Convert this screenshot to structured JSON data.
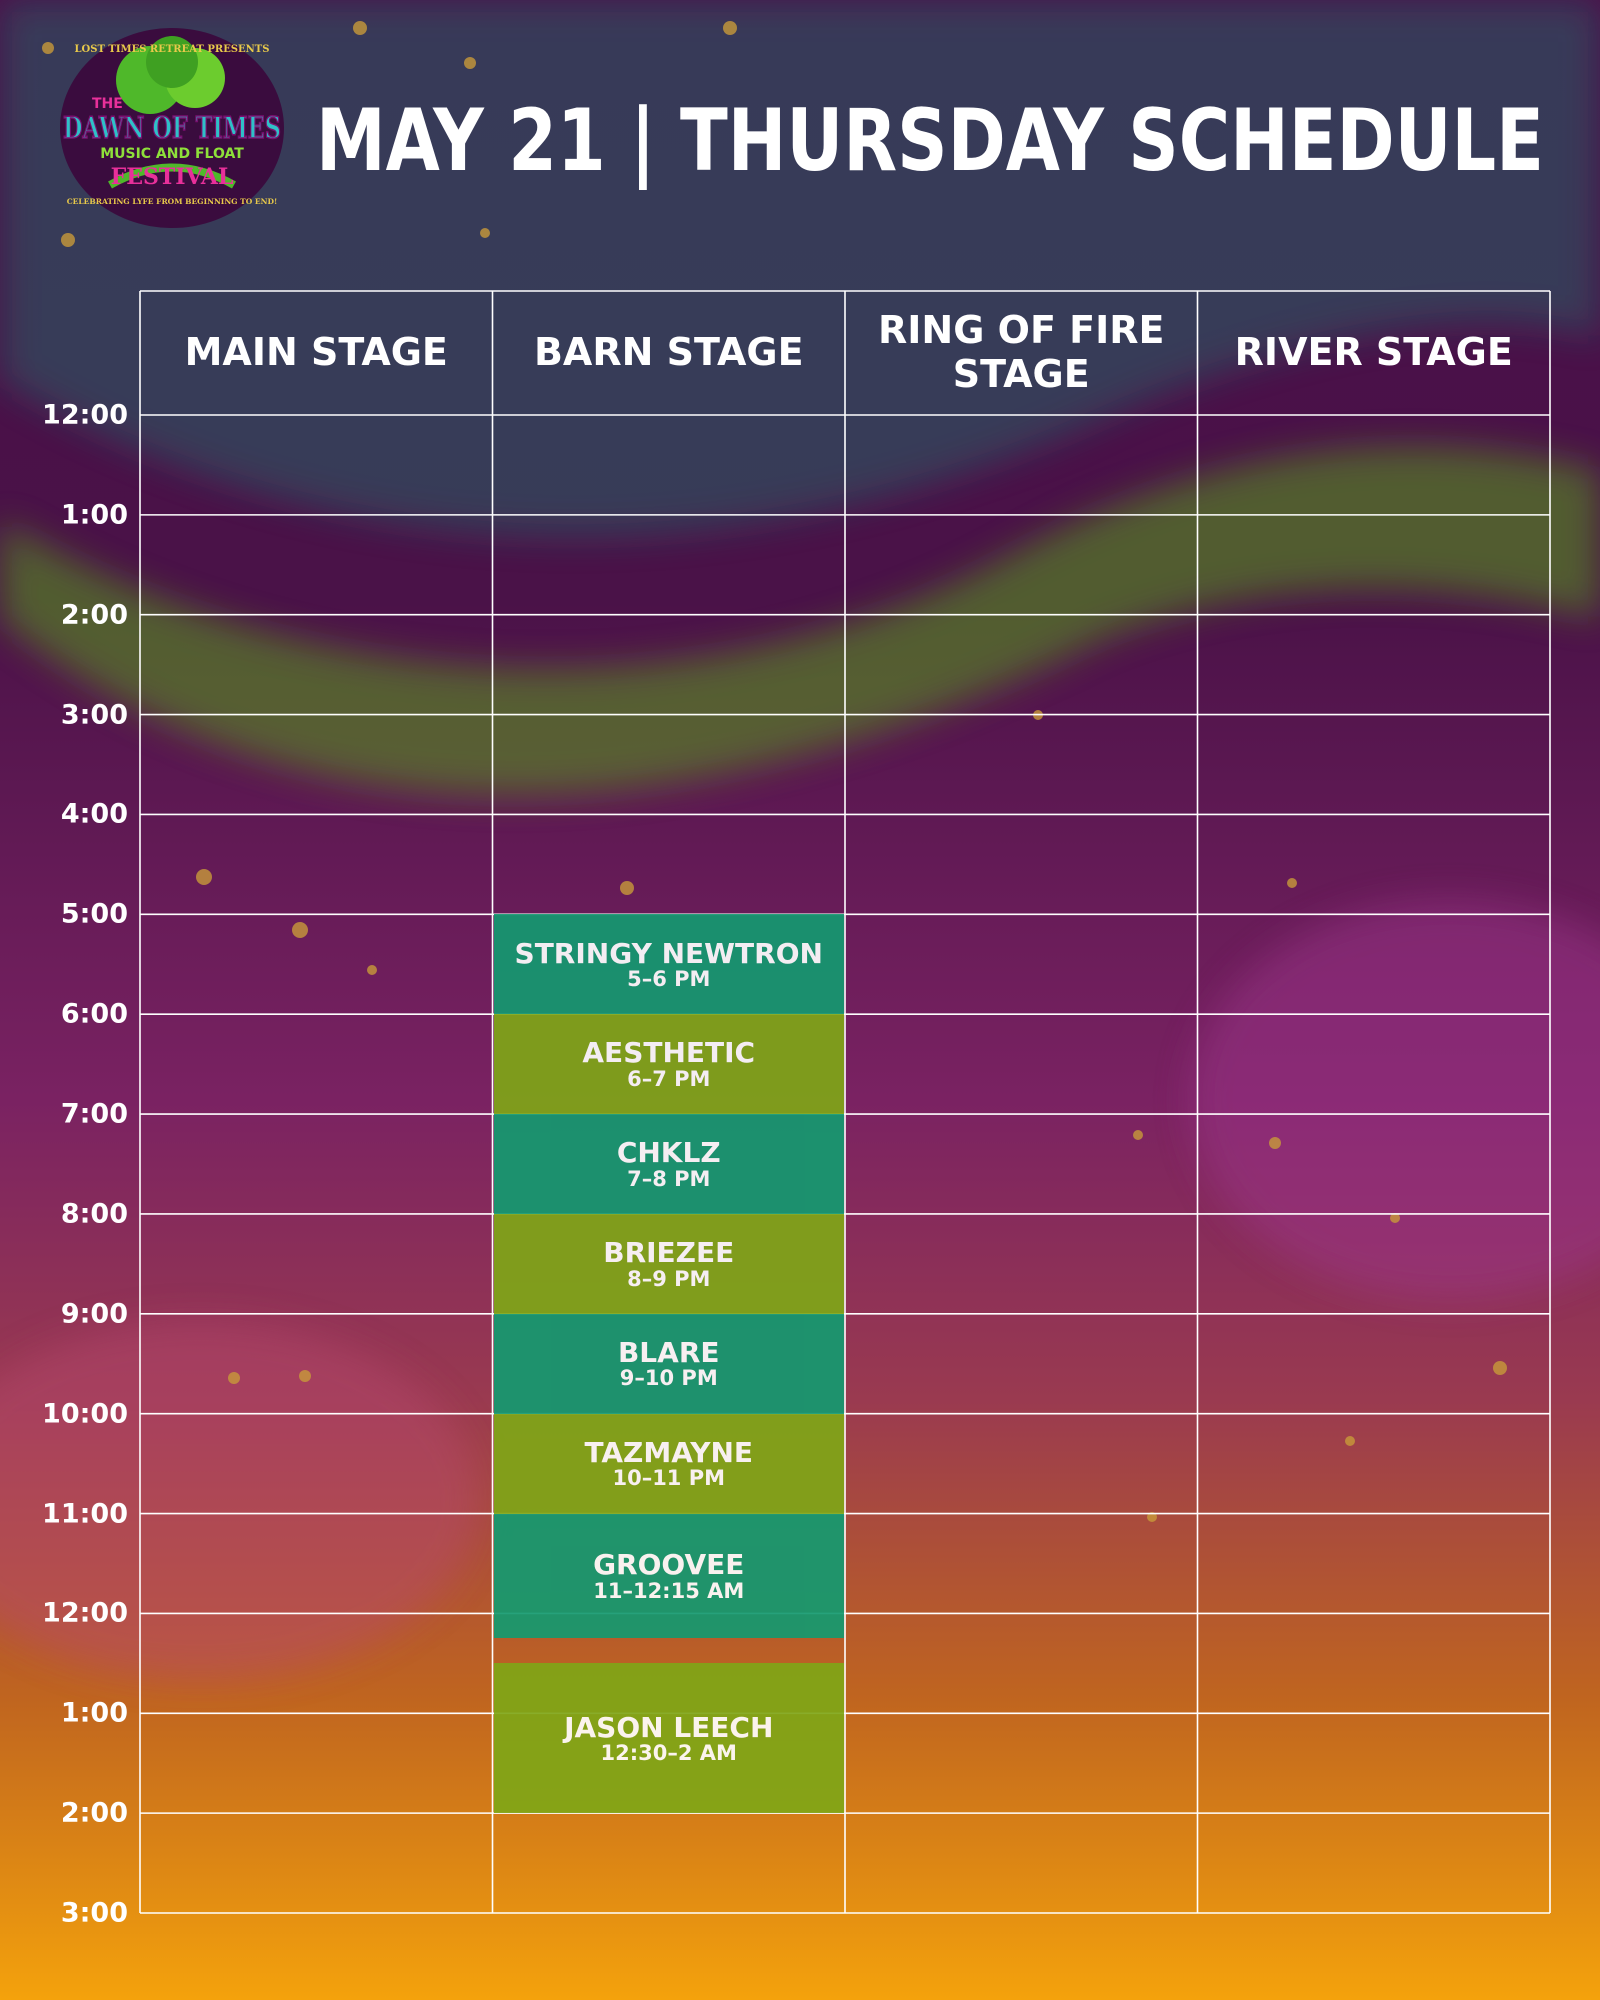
{
  "logo": {
    "top": "LOST TIMES RETREAT PRESENTS",
    "the": "THE",
    "name": "DAWN OF TIMES",
    "sub": "MUSIC AND FLOAT",
    "festival": "FESTIVAL",
    "tagline": "CELEBRATING LYFE FROM BEGINNING TO END!"
  },
  "title": "MAY 21 | THURSDAY SCHEDULE",
  "times": [
    {
      "value": 12,
      "label": "12:00"
    },
    {
      "value": 13,
      "label": "1:00"
    },
    {
      "value": 14,
      "label": "2:00"
    },
    {
      "value": 15,
      "label": "3:00"
    },
    {
      "value": 16,
      "label": "4:00"
    },
    {
      "value": 17,
      "label": "5:00"
    },
    {
      "value": 18,
      "label": "6:00"
    },
    {
      "value": 19,
      "label": "7:00"
    },
    {
      "value": 20,
      "label": "8:00"
    },
    {
      "value": 21,
      "label": "9:00"
    },
    {
      "value": 22,
      "label": "10:00"
    },
    {
      "value": 23,
      "label": "11:00"
    },
    {
      "value": 24,
      "label": "12:00"
    },
    {
      "value": 25,
      "label": "1:00"
    },
    {
      "value": 26,
      "label": "2:00"
    },
    {
      "value": 27,
      "label": "3:00"
    }
  ],
  "stages": [
    {
      "name": "MAIN STAGE",
      "events": []
    },
    {
      "name": "BARN STAGE",
      "events": [
        {
          "name": "STRINGY NEWTRON",
          "time": "5–6 PM",
          "start": 17,
          "end": 18
        },
        {
          "name": "AESTHETIC",
          "time": "6–7 PM",
          "start": 18,
          "end": 19
        },
        {
          "name": "CHKLZ",
          "time": "7–8 PM",
          "start": 19,
          "end": 20
        },
        {
          "name": "BRIEZEE",
          "time": "8–9 PM",
          "start": 20,
          "end": 21
        },
        {
          "name": "BLARE",
          "time": "9–10 PM",
          "start": 21,
          "end": 22
        },
        {
          "name": "TAZMAYNE",
          "time": "10–11 PM",
          "start": 22,
          "end": 23
        },
        {
          "name": "GROOVEE",
          "time": "11–12:15 AM",
          "start": 23,
          "end": 24.25
        },
        {
          "name": "JASON LEECH",
          "time": "12:30–2 AM",
          "start": 24.5,
          "end": 26
        }
      ]
    },
    {
      "name": "RING OF FIRE STAGE",
      "events": []
    },
    {
      "name": "RIVER STAGE",
      "events": []
    }
  ]
}
